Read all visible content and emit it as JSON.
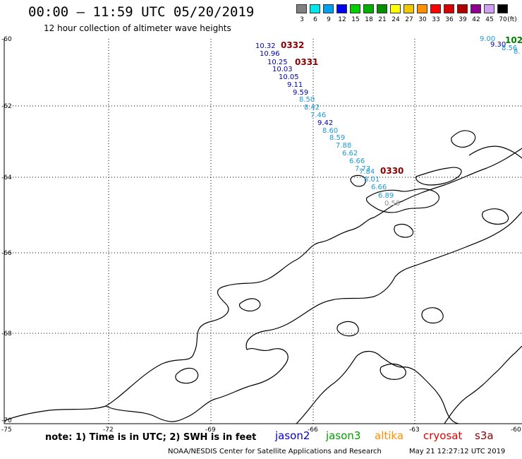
{
  "header": {
    "title": "00:00 – 11:59 UTC 05/20/2019",
    "subtitle": "12 hour collection of altimeter wave heights"
  },
  "legend": {
    "swatches": [
      {
        "label": "3",
        "color": "#808080"
      },
      {
        "label": "6",
        "color": "#00e8e8"
      },
      {
        "label": "9",
        "color": "#00a0f0"
      },
      {
        "label": "12",
        "color": "#0000f0"
      },
      {
        "label": "15",
        "color": "#00d000"
      },
      {
        "label": "18",
        "color": "#00b000"
      },
      {
        "label": "21",
        "color": "#009000"
      },
      {
        "label": "24",
        "color": "#ffff00"
      },
      {
        "label": "27",
        "color": "#f0c800"
      },
      {
        "label": "30",
        "color": "#ff9000"
      },
      {
        "label": "33",
        "color": "#ff0000"
      },
      {
        "label": "36",
        "color": "#d80000"
      },
      {
        "label": "39",
        "color": "#b00000"
      },
      {
        "label": "42",
        "color": "#900090"
      },
      {
        "label": "45",
        "color": "#d0a0f0"
      },
      {
        "label": "70",
        "color": "#000000"
      }
    ],
    "unit": "(ft)"
  },
  "map": {
    "lat_ticks": [
      "-60",
      "-62",
      "-64",
      "-66",
      "-68",
      "-70"
    ],
    "lon_ticks": [
      "-75",
      "-72",
      "-69",
      "-66",
      "-63",
      "-60"
    ],
    "track_times": [
      {
        "text": "0332",
        "color": "#8b0000"
      },
      {
        "text": "0331",
        "color": "#8b0000"
      },
      {
        "text": "0330",
        "color": "#8b0000"
      },
      {
        "text": "102",
        "color": "#008000"
      }
    ],
    "swh_labels": [
      {
        "text": "10.32",
        "color": "#0000b0"
      },
      {
        "text": "10.96",
        "color": "#0000b0"
      },
      {
        "text": "10.25",
        "color": "#0000b0"
      },
      {
        "text": "10.03",
        "color": "#0000b0"
      },
      {
        "text": "10.05",
        "color": "#0000b0"
      },
      {
        "text": "9.11",
        "color": "#0000b0"
      },
      {
        "text": "9.59",
        "color": "#0000b0"
      },
      {
        "text": "8.50",
        "color": "#1a9ad6"
      },
      {
        "text": "8.42",
        "color": "#1a9ad6"
      },
      {
        "text": "7.46",
        "color": "#1a9ad6"
      },
      {
        "text": "9.42",
        "color": "#0000b0"
      },
      {
        "text": "8.60",
        "color": "#1a9ad6"
      },
      {
        "text": "8.59",
        "color": "#1a9ad6"
      },
      {
        "text": "7.88",
        "color": "#1a9ad6"
      },
      {
        "text": "6.62",
        "color": "#1a9ad6"
      },
      {
        "text": "6.66",
        "color": "#1a9ad6"
      },
      {
        "text": "7.73",
        "color": "#1a9ad6"
      },
      {
        "text": "7.84",
        "color": "#1a9ad6"
      },
      {
        "text": "8.01",
        "color": "#1a9ad6"
      },
      {
        "text": "6.66",
        "color": "#1a9ad6"
      },
      {
        "text": "6.89",
        "color": "#1a9ad6"
      },
      {
        "text": "0.58",
        "color": "#909090"
      },
      {
        "text": "9.00",
        "color": "#1a9ad6"
      },
      {
        "text": "9.30",
        "color": "#0000b0"
      },
      {
        "text": "8.56",
        "color": "#1a9ad6"
      },
      {
        "text": "8.",
        "color": "#1a9ad6"
      }
    ]
  },
  "footer": {
    "note": "note: 1) Time is in UTC; 2) SWH is in feet",
    "satellites": [
      {
        "name": "jason2",
        "color": "#0000d0"
      },
      {
        "name": "jason3",
        "color": "#00a000"
      },
      {
        "name": "altika",
        "color": "#ff9000"
      },
      {
        "name": "cryosat",
        "color": "#e00000"
      },
      {
        "name": "s3a",
        "color": "#8b0000"
      }
    ],
    "credit": "NOAA/NESDIS Center for Satellite Applications and Research",
    "timestamp": "May 21 12:27:12 UTC 2019"
  }
}
